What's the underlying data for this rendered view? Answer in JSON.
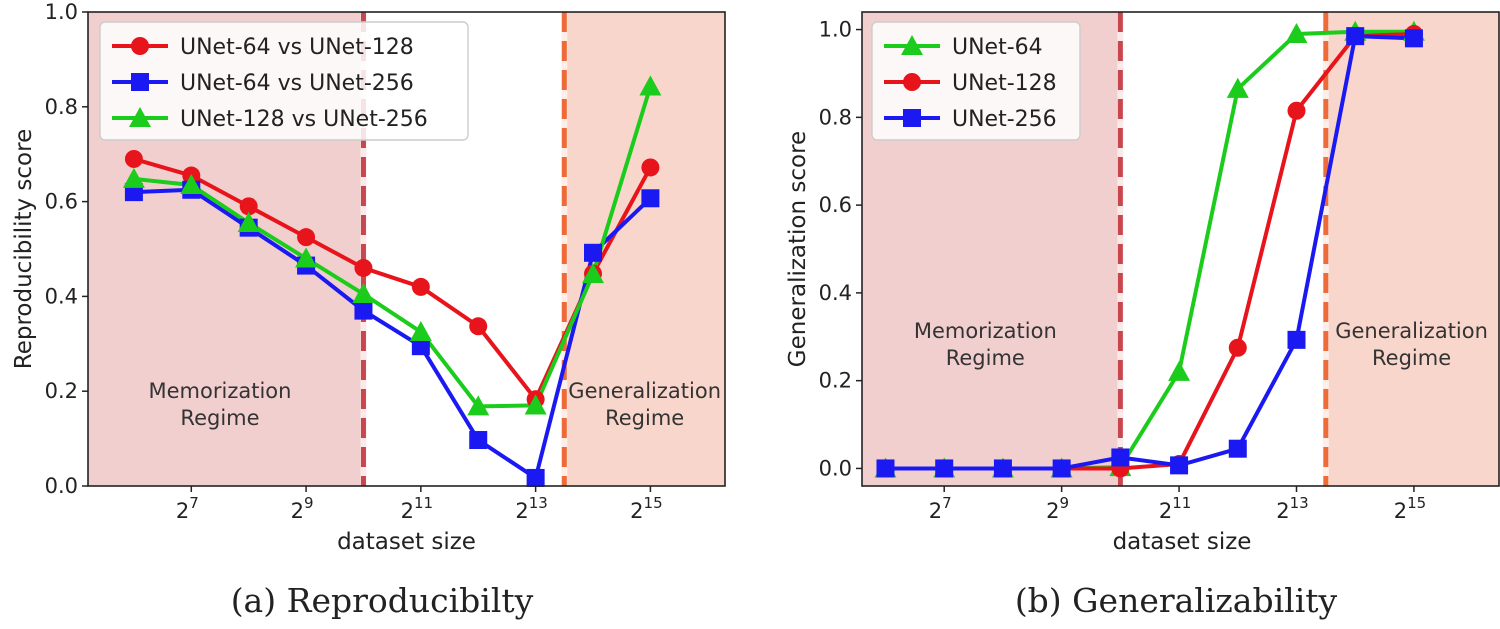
{
  "chart_data": [
    {
      "type": "line",
      "caption": "(a) Reproducibilty",
      "xlabel": "dataset size",
      "ylabel": "Reproducibility score",
      "x_exponents": [
        6,
        7,
        8,
        9,
        10,
        11,
        12,
        13,
        14,
        15
      ],
      "x_tick_exponents": [
        "7",
        "9",
        "11",
        "13",
        "15"
      ],
      "x_tick_base": "2",
      "xlim_exponent": [
        5.2,
        16.3
      ],
      "ylim": [
        0,
        1.0
      ],
      "y_ticks": [
        "0.0",
        "0.2",
        "0.4",
        "0.6",
        "0.8",
        "1.0"
      ],
      "memorization_region": {
        "from": 5.2,
        "to": 10,
        "label_line1": "Memorization",
        "label_line2": "Regime",
        "label_x": 7.5,
        "label_y": 0.16
      },
      "generalization_region": {
        "from": 13.5,
        "to": 16.3,
        "label_line1": "Generalization",
        "label_line2": "Regime",
        "label_x": 14.9,
        "label_y": 0.16
      },
      "legend_position": "top-left",
      "series": [
        {
          "name": "UNet-64 vs UNet-128",
          "color": "#e8141c",
          "marker": "circle",
          "values": [
            0.69,
            0.655,
            0.59,
            0.525,
            0.46,
            0.42,
            0.337,
            0.183,
            0.448,
            0.672
          ]
        },
        {
          "name": "UNet-64 vs UNet-256",
          "color": "#1b19f2",
          "marker": "square",
          "values": [
            0.62,
            0.625,
            0.545,
            0.465,
            0.37,
            0.295,
            0.097,
            0.017,
            0.492,
            0.607
          ]
        },
        {
          "name": "UNet-128 vs UNet-256",
          "color": "#1ccc1c",
          "marker": "triangle",
          "values": [
            0.648,
            0.635,
            0.555,
            0.48,
            0.405,
            0.325,
            0.168,
            0.17,
            0.447,
            0.843
          ]
        }
      ]
    },
    {
      "type": "line",
      "caption": "(b) Generalizability",
      "xlabel": "dataset size",
      "ylabel": "Generalization score",
      "x_exponents": [
        6,
        7,
        8,
        9,
        10,
        11,
        12,
        13,
        14,
        15
      ],
      "x_tick_exponents": [
        "7",
        "9",
        "11",
        "13",
        "15"
      ],
      "x_tick_base": "2",
      "xlim_exponent": [
        5.6,
        16.5
      ],
      "ylim": [
        -0.04,
        1.04
      ],
      "y_ticks": [
        "0.0",
        "0.2",
        "0.4",
        "0.6",
        "0.8",
        "1.0"
      ],
      "memorization_region": {
        "from": 5.6,
        "to": 10,
        "label_line1": "Memorization",
        "label_line2": "Regime",
        "label_x": 7.7,
        "label_y": 0.27
      },
      "generalization_region": {
        "from": 13.5,
        "to": 16.5,
        "label_line1": "Generalization",
        "label_line2": "Regime",
        "label_x": 14.96,
        "label_y": 0.27
      },
      "legend_position": "top-left",
      "series": [
        {
          "name": "UNet-64",
          "color": "#1ccc1c",
          "marker": "triangle",
          "values": [
            0.0,
            0.0,
            0.0,
            0.0,
            0.003,
            0.22,
            0.865,
            0.99,
            0.995,
            0.995
          ]
        },
        {
          "name": "UNet-128",
          "color": "#e8141c",
          "marker": "circle",
          "values": [
            0.0,
            0.0,
            0.0,
            0.0,
            0.0,
            0.01,
            0.275,
            0.815,
            0.985,
            0.99
          ]
        },
        {
          "name": "UNet-256",
          "color": "#1b19f2",
          "marker": "square",
          "values": [
            0.0,
            0.0,
            0.0,
            0.0,
            0.025,
            0.007,
            0.045,
            0.293,
            0.985,
            0.98
          ]
        }
      ]
    }
  ]
}
